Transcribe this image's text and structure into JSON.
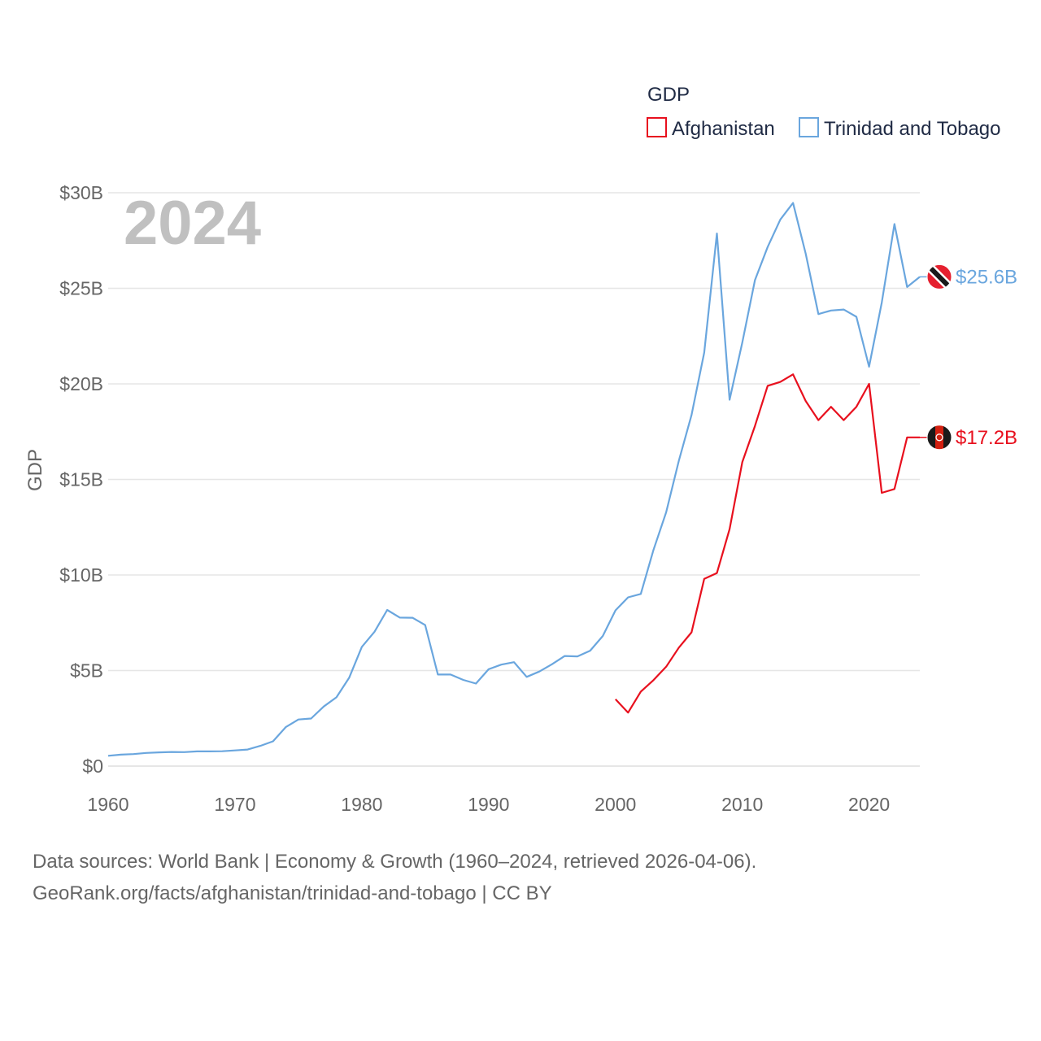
{
  "chart_data": {
    "type": "line",
    "legend_title": "GDP",
    "ylabel": "GDP",
    "year_label": "2024",
    "x_ticks": [
      1960,
      1970,
      1980,
      1990,
      2000,
      2010,
      2020
    ],
    "y_ticks": [
      0,
      5,
      10,
      15,
      20,
      25,
      30
    ],
    "y_tick_labels": [
      "$0",
      "$5B",
      "$10B",
      "$15B",
      "$20B",
      "$25B",
      "$30B"
    ],
    "xlim": [
      1960,
      2024
    ],
    "ylim": [
      0,
      30
    ],
    "y_unit": "billion USD",
    "series": [
      {
        "name": "Afghanistan",
        "color": "#e8101e",
        "end_label": "$17.2B",
        "flag_icon": "afghanistan-flag-icon",
        "x": [
          2000,
          2001,
          2002,
          2003,
          2004,
          2005,
          2006,
          2007,
          2008,
          2009,
          2010,
          2011,
          2012,
          2013,
          2014,
          2015,
          2016,
          2017,
          2018,
          2019,
          2020,
          2021,
          2022,
          2023,
          2024
        ],
        "values": [
          3.5,
          2.8,
          3.9,
          4.5,
          5.2,
          6.2,
          7.0,
          9.8,
          10.1,
          12.4,
          15.9,
          17.8,
          19.9,
          20.1,
          20.5,
          19.1,
          18.1,
          18.8,
          18.1,
          18.8,
          20.0,
          14.3,
          14.5,
          17.2,
          17.2
        ]
      },
      {
        "name": "Trinidad and Tobago",
        "color": "#6aa6de",
        "end_label": "$25.6B",
        "flag_icon": "trinidad-and-tobago-flag-icon",
        "x": [
          1960,
          1961,
          1962,
          1963,
          1964,
          1965,
          1966,
          1967,
          1968,
          1969,
          1970,
          1971,
          1972,
          1973,
          1974,
          1975,
          1976,
          1977,
          1978,
          1979,
          1980,
          1981,
          1982,
          1983,
          1984,
          1985,
          1986,
          1987,
          1988,
          1989,
          1990,
          1991,
          1992,
          1993,
          1994,
          1995,
          1996,
          1997,
          1998,
          1999,
          2000,
          2001,
          2002,
          2003,
          2004,
          2005,
          2006,
          2007,
          2008,
          2009,
          2010,
          2011,
          2012,
          2013,
          2014,
          2015,
          2016,
          2017,
          2018,
          2019,
          2020,
          2021,
          2022,
          2023,
          2024
        ],
        "values": [
          0.54,
          0.6,
          0.63,
          0.69,
          0.72,
          0.74,
          0.73,
          0.77,
          0.77,
          0.78,
          0.82,
          0.87,
          1.06,
          1.3,
          2.04,
          2.44,
          2.49,
          3.12,
          3.6,
          4.62,
          6.24,
          7.03,
          8.17,
          7.77,
          7.76,
          7.38,
          4.79,
          4.79,
          4.51,
          4.32,
          5.07,
          5.31,
          5.44,
          4.67,
          4.95,
          5.33,
          5.76,
          5.74,
          6.04,
          6.81,
          8.15,
          8.83,
          9.01,
          11.31,
          13.28,
          15.98,
          18.37,
          21.64,
          27.87,
          19.17,
          22.16,
          25.43,
          27.16,
          28.6,
          29.47,
          26.81,
          23.65,
          23.84,
          23.89,
          23.51,
          20.9,
          24.25,
          28.36,
          25.07,
          25.6
        ]
      }
    ]
  },
  "source": {
    "line1": "Data sources: World Bank | Economy & Growth (1960–2024, retrieved 2026-04-06).",
    "line2": "GeoRank.org/facts/afghanistan/trinidad-and-tobago | CC BY"
  }
}
